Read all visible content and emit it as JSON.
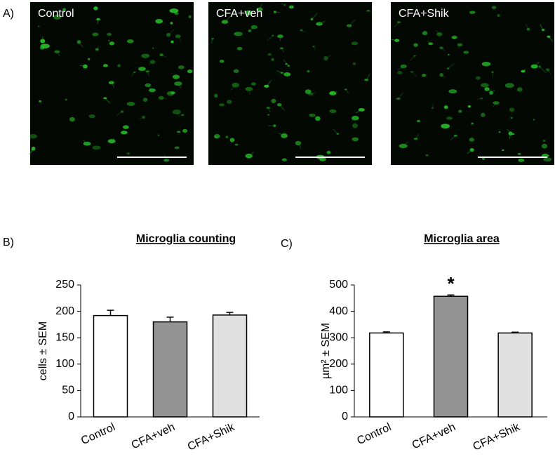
{
  "panel_labels": [
    "A)",
    "B)",
    "C)"
  ],
  "images": [
    {
      "label": "Control"
    },
    {
      "label": "CFA+veh"
    },
    {
      "label": "CFA+Shik"
    }
  ],
  "chart_data": [
    {
      "type": "bar",
      "title": "Microglia counting",
      "ylabel": "cells ± SEM",
      "categories": [
        "Control",
        "CFA+veh",
        "CFA+Shik"
      ],
      "values": [
        192,
        180,
        193
      ],
      "errors": [
        10,
        9,
        5
      ],
      "colors": [
        "#ffffff",
        "#939393",
        "#e0e0e0"
      ],
      "significance": [
        null,
        null,
        null
      ],
      "ylim": [
        0,
        250
      ],
      "yticks": [
        0,
        50,
        100,
        150,
        200,
        250
      ]
    },
    {
      "type": "bar",
      "title": "Microglia area",
      "ylabel": "µm² ± SEM",
      "categories": [
        "Control",
        "CFA+veh",
        "CFA+Shik"
      ],
      "values": [
        318,
        457,
        318
      ],
      "errors": [
        4,
        5,
        3
      ],
      "colors": [
        "#ffffff",
        "#939393",
        "#e0e0e0"
      ],
      "significance": [
        null,
        "*",
        null
      ],
      "ylim": [
        0,
        500
      ],
      "yticks": [
        0,
        100,
        200,
        300,
        400,
        500
      ]
    }
  ]
}
